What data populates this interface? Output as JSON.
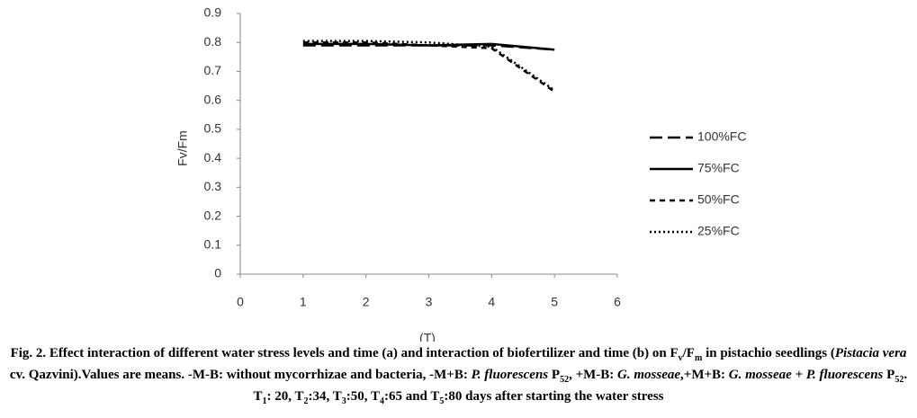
{
  "chart_data": {
    "type": "line",
    "ylabel": "Fv/Fm",
    "xlabel": "(T)",
    "x": [
      1,
      2,
      3,
      4,
      5
    ],
    "xlim": [
      0,
      6
    ],
    "xticks": [
      0,
      1,
      2,
      3,
      4,
      5,
      6
    ],
    "ylim": [
      0,
      0.9
    ],
    "yticks": [
      0,
      0.1,
      0.2,
      0.3,
      0.4,
      0.5,
      0.6,
      0.7,
      0.8,
      0.9
    ],
    "grid": false,
    "legend": "right",
    "series": [
      {
        "name": "100%FC",
        "color": "#000000",
        "dash": "long",
        "values": [
          0.79,
          0.79,
          0.79,
          0.79,
          0.775
        ]
      },
      {
        "name": "75%FC",
        "color": "#000000",
        "dash": "solid",
        "values": [
          0.795,
          0.795,
          0.79,
          0.795,
          0.775
        ]
      },
      {
        "name": "50%FC",
        "color": "#000000",
        "dash": "dash",
        "values": [
          0.8,
          0.8,
          0.79,
          0.78,
          0.63
        ]
      },
      {
        "name": "25%FC",
        "color": "#000000",
        "dash": "dot",
        "values": [
          0.805,
          0.805,
          0.8,
          0.785,
          0.635
        ]
      }
    ]
  },
  "caption": [
    {
      "text": "Fig. 2. Effect interaction of different water stress levels and time (a) and interaction of biofertilizer and time (b) on F",
      "style": "b"
    },
    {
      "text": "v",
      "style": "sub"
    },
    {
      "text": "/F",
      "style": "b"
    },
    {
      "text": "m",
      "style": "sub"
    },
    {
      "text": " in pistachio seedlings (",
      "style": "b"
    },
    {
      "text": "Pistacia vera",
      "style": "i"
    },
    {
      "text": " cv. Qazvini).Values are means. -M-B: without mycorrhizae and bacteria, -M+B: ",
      "style": "b"
    },
    {
      "text": "P. fluorescens",
      "style": "i"
    },
    {
      "text": " P",
      "style": "b"
    },
    {
      "text": "52",
      "style": "sub"
    },
    {
      "text": ", +M-B: ",
      "style": "b"
    },
    {
      "text": "G. mosseae",
      "style": "i"
    },
    {
      "text": ",+M+B: ",
      "style": "b"
    },
    {
      "text": "G. mosseae + P. fluorescens",
      "style": "i"
    },
    {
      "text": " P",
      "style": "b"
    },
    {
      "text": "52",
      "style": "sub"
    },
    {
      "text": ". T",
      "style": "b"
    },
    {
      "text": "1",
      "style": "sub"
    },
    {
      "text": ": 20, T",
      "style": "b"
    },
    {
      "text": "2",
      "style": "sub"
    },
    {
      "text": ":34, T",
      "style": "b"
    },
    {
      "text": "3",
      "style": "sub"
    },
    {
      "text": ":50, T",
      "style": "b"
    },
    {
      "text": "4",
      "style": "sub"
    },
    {
      "text": ":65 and T",
      "style": "b"
    },
    {
      "text": "5",
      "style": "sub"
    },
    {
      "text": ":80 days after starting the water stress",
      "style": "b"
    }
  ]
}
